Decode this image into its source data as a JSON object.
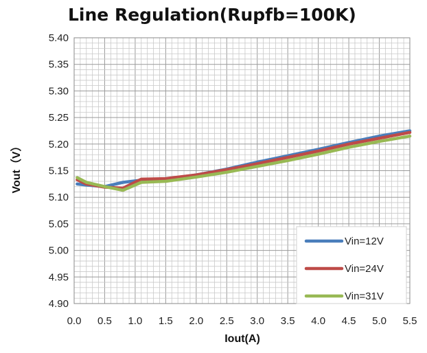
{
  "chart_data": {
    "type": "line",
    "title": "Line Regulation(Rupfb=100K)",
    "xlabel": "Iout(A)",
    "ylabel": "Vout（V）",
    "xlim": [
      0,
      5.5
    ],
    "ylim": [
      4.9,
      5.4
    ],
    "x_ticks": [
      "0.0",
      "0.5",
      "1.0",
      "1.5",
      "2.0",
      "2.5",
      "3.0",
      "3.5",
      "4.0",
      "4.5",
      "5.0",
      "5.5"
    ],
    "y_ticks": [
      "4.90",
      "4.95",
      "5.00",
      "5.05",
      "5.10",
      "5.15",
      "5.20",
      "5.25",
      "5.30",
      "5.35",
      "5.40"
    ],
    "grid": true,
    "legend_position": "bottom-right",
    "series": [
      {
        "name": "Vin=12V",
        "color": "#4a7ebb",
        "points": [
          [
            0.05,
            5.125
          ],
          [
            0.2,
            5.123
          ],
          [
            0.5,
            5.12
          ],
          [
            0.8,
            5.128
          ],
          [
            1.1,
            5.132
          ],
          [
            1.5,
            5.134
          ],
          [
            2.0,
            5.142
          ],
          [
            2.5,
            5.153
          ],
          [
            3.0,
            5.166
          ],
          [
            3.5,
            5.178
          ],
          [
            4.0,
            5.19
          ],
          [
            4.5,
            5.203
          ],
          [
            5.0,
            5.215
          ],
          [
            5.5,
            5.225
          ]
        ]
      },
      {
        "name": "Vin=24V",
        "color": "#be4b48",
        "points": [
          [
            0.05,
            5.133
          ],
          [
            0.2,
            5.125
          ],
          [
            0.5,
            5.119
          ],
          [
            0.8,
            5.117
          ],
          [
            1.1,
            5.134
          ],
          [
            1.5,
            5.135
          ],
          [
            2.0,
            5.142
          ],
          [
            2.5,
            5.152
          ],
          [
            3.0,
            5.163
          ],
          [
            3.5,
            5.175
          ],
          [
            4.0,
            5.187
          ],
          [
            4.5,
            5.2
          ],
          [
            5.0,
            5.211
          ],
          [
            5.5,
            5.222
          ]
        ]
      },
      {
        "name": "Vin=31V",
        "color": "#98b954",
        "points": [
          [
            0.05,
            5.137
          ],
          [
            0.2,
            5.128
          ],
          [
            0.5,
            5.12
          ],
          [
            0.8,
            5.113
          ],
          [
            1.1,
            5.128
          ],
          [
            1.5,
            5.13
          ],
          [
            2.0,
            5.138
          ],
          [
            2.5,
            5.147
          ],
          [
            3.0,
            5.158
          ],
          [
            3.5,
            5.169
          ],
          [
            4.0,
            5.181
          ],
          [
            4.5,
            5.194
          ],
          [
            5.0,
            5.205
          ],
          [
            5.5,
            5.215
          ]
        ]
      }
    ]
  }
}
